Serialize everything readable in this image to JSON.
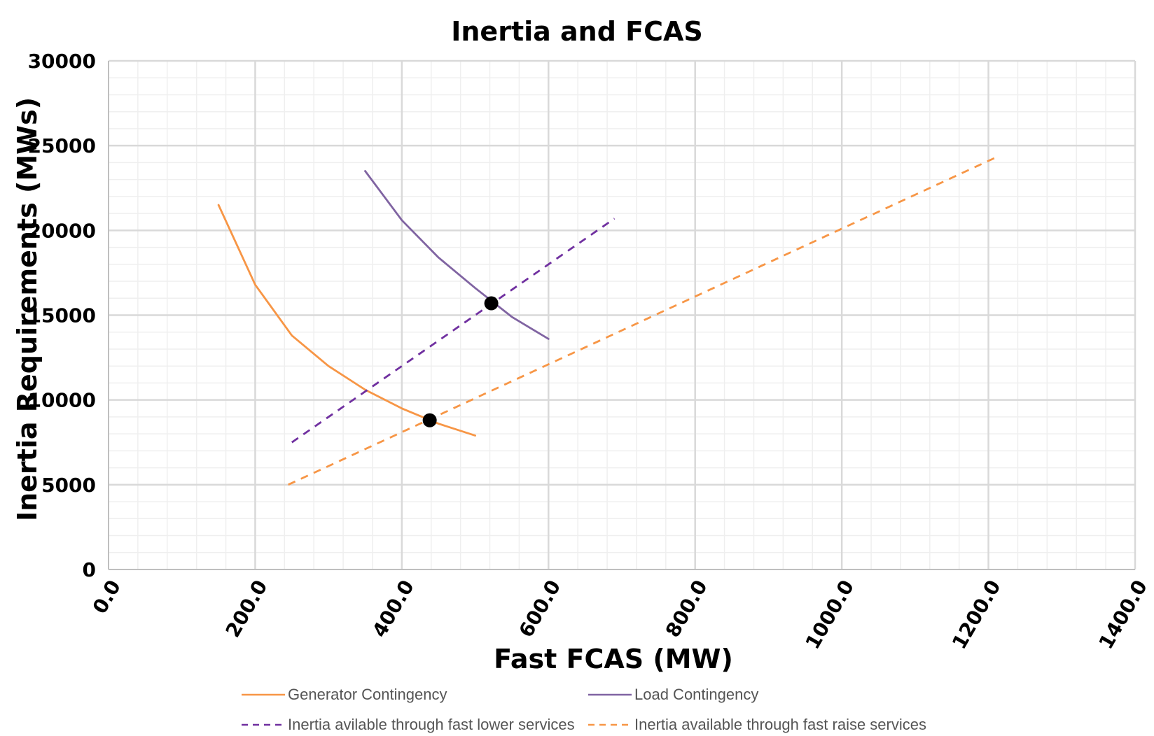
{
  "chart_data": {
    "type": "line",
    "title": "Inertia and FCAS",
    "xlabel": "Fast FCAS (MW)",
    "ylabel": "Inertia Requirements (MWs)",
    "xlim": [
      0,
      1400
    ],
    "ylim": [
      0,
      30000
    ],
    "x_ticks": [
      "0.0",
      "200.0",
      "400.0",
      "600.0",
      "800.0",
      "1000.0",
      "1200.0",
      "1400.0"
    ],
    "x_tick_values": [
      0,
      200,
      400,
      600,
      800,
      1000,
      1200,
      1400
    ],
    "y_ticks": [
      "0",
      "5000",
      "10000",
      "15000",
      "20000",
      "25000",
      "30000"
    ],
    "y_tick_values": [
      0,
      5000,
      10000,
      15000,
      20000,
      25000,
      30000
    ],
    "grid": true,
    "legend_position": "bottom",
    "series": [
      {
        "name": "Generator Contingency",
        "color": "#F79646",
        "style": "solid",
        "points": [
          [
            150,
            21500
          ],
          [
            200,
            16800
          ],
          [
            250,
            13800
          ],
          [
            300,
            12000
          ],
          [
            350,
            10600
          ],
          [
            400,
            9500
          ],
          [
            450,
            8600
          ],
          [
            500,
            7900
          ]
        ]
      },
      {
        "name": "Load Contingency",
        "color": "#8064A2",
        "style": "solid",
        "points": [
          [
            350,
            23500
          ],
          [
            400,
            20600
          ],
          [
            450,
            18400
          ],
          [
            500,
            16600
          ],
          [
            550,
            14900
          ],
          [
            600,
            13600
          ]
        ]
      },
      {
        "name": "Inertia avilable through fast lower services",
        "color": "#7030A0",
        "style": "dashed",
        "points": [
          [
            250,
            7500
          ],
          [
            690,
            20700
          ]
        ]
      },
      {
        "name": "Inertia available through fast raise services",
        "color": "#F79646",
        "style": "dashed",
        "points": [
          [
            245,
            5000
          ],
          [
            1210,
            24300
          ]
        ]
      }
    ],
    "markers": [
      {
        "x": 522,
        "y": 15700,
        "color": "#000000"
      },
      {
        "x": 438,
        "y": 8800,
        "color": "#000000"
      }
    ]
  }
}
